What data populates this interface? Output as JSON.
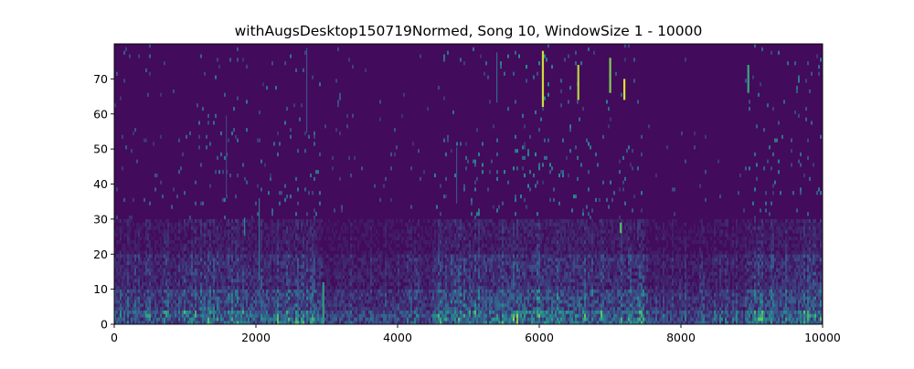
{
  "chart_data": {
    "type": "heatmap",
    "title": "withAugsDesktop150719Normed, Song 10, WindowSize 1 - 10000",
    "xlabel": "",
    "ylabel": "",
    "xlim": [
      0,
      10000
    ],
    "ylim": [
      0,
      80
    ],
    "x_ticks": [
      0,
      2000,
      4000,
      6000,
      8000,
      10000
    ],
    "y_ticks": [
      0,
      10,
      20,
      30,
      40,
      50,
      60,
      70
    ],
    "x_tick_labels": [
      "0",
      "2000",
      "4000",
      "6000",
      "8000",
      "10000"
    ],
    "y_tick_labels": [
      "0",
      "10",
      "20",
      "30",
      "40",
      "50",
      "60",
      "70"
    ],
    "colormap": "viridis",
    "grid": false,
    "value_range": [
      0,
      1
    ],
    "background_value": 0.03,
    "energy_regions": [
      {
        "x_range": [
          0,
          950
        ],
        "level": 0.5
      },
      {
        "x_range": [
          950,
          2950
        ],
        "level": 0.75
      },
      {
        "x_range": [
          2950,
          3100
        ],
        "level": 0.25
      },
      {
        "x_range": [
          3100,
          4500
        ],
        "level": 0.35
      },
      {
        "x_range": [
          4500,
          5200
        ],
        "level": 0.85
      },
      {
        "x_range": [
          5200,
          6700
        ],
        "level": 1.0
      },
      {
        "x_range": [
          6700,
          7500
        ],
        "level": 0.8
      },
      {
        "x_range": [
          7500,
          8900
        ],
        "level": 0.3
      },
      {
        "x_range": [
          8900,
          10000
        ],
        "level": 0.8
      }
    ],
    "highlights": [
      {
        "x": 6050,
        "y": [
          62,
          78
        ],
        "value": 0.92
      },
      {
        "x": 6550,
        "y": [
          64,
          74
        ],
        "value": 0.88
      },
      {
        "x": 7000,
        "y": [
          66,
          76
        ],
        "value": 0.8
      },
      {
        "x": 7200,
        "y": [
          64,
          70
        ],
        "value": 0.95
      },
      {
        "x": 7150,
        "y": [
          26,
          29
        ],
        "value": 0.7
      },
      {
        "x": 2950,
        "y": [
          0,
          12
        ],
        "value": 0.55
      },
      {
        "x": 8950,
        "y": [
          66,
          74
        ],
        "value": 0.6
      }
    ]
  }
}
